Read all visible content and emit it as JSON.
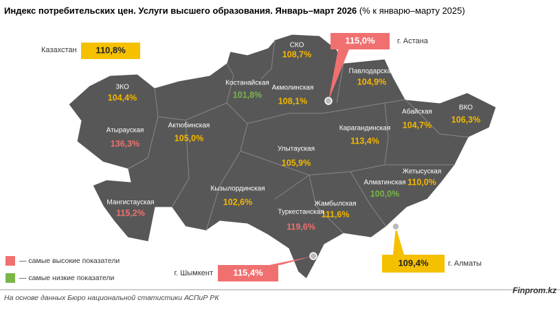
{
  "title": "Индекс потребительских цен. Услуги высшего образования. Январь–март 2026",
  "subtitle": "(% к январю–марту 2025)",
  "country": {
    "label": "Казахстан",
    "value": "110,8%",
    "color": "#f5c000"
  },
  "regions": [
    {
      "name": "СКО",
      "value": "108,7%",
      "color": "#f5b800"
    },
    {
      "name": "Костанайская",
      "value": "101,8%",
      "color": "#7ab648"
    },
    {
      "name": "Акмолинская",
      "value": "108,1%",
      "color": "#f5b800"
    },
    {
      "name": "Павлодарская",
      "value": "104,9%",
      "color": "#f5b800"
    },
    {
      "name": "ЗКО",
      "value": "104,4%",
      "color": "#f5b800"
    },
    {
      "name": "Абайская",
      "value": "104,7%",
      "color": "#f5b800"
    },
    {
      "name": "ВКО",
      "value": "106,3%",
      "color": "#f5b800"
    },
    {
      "name": "Атырауская",
      "value": "136,3%",
      "color": "#f07070"
    },
    {
      "name": "Актюбинская",
      "value": "105,0%",
      "color": "#f5b800"
    },
    {
      "name": "Карагандинская",
      "value": "113,4%",
      "color": "#f5b800"
    },
    {
      "name": "Улытауская",
      "value": "105,9%",
      "color": "#f5b800"
    },
    {
      "name": "Жетысуская",
      "value": "110,0%",
      "color": "#f5b800"
    },
    {
      "name": "Алматинская",
      "value": "100,0%",
      "color": "#7ab648"
    },
    {
      "name": "Кызылординская",
      "value": "102,6%",
      "color": "#f5b800"
    },
    {
      "name": "Мангистауская",
      "value": "115,2%",
      "color": "#f07070"
    },
    {
      "name": "Жамбылская",
      "value": "111,6%",
      "color": "#f5b800"
    },
    {
      "name": "Туркестанская",
      "value": "119,6%",
      "color": "#f07070"
    }
  ],
  "cities": [
    {
      "name": "г. Астана",
      "value": "115,0%",
      "color": "#f07070"
    },
    {
      "name": "г. Шымкент",
      "value": "115,4%",
      "color": "#f07070"
    },
    {
      "name": "г. Алматы",
      "value": "109,4%",
      "color": "#f5c000"
    }
  ],
  "legend": [
    {
      "label": "— самые высокие показатели",
      "color": "#f07070"
    },
    {
      "label": "— самые низкие показатели",
      "color": "#7ab648"
    }
  ],
  "source": "На основе данных Бюро национальной статистики АСПиР РК",
  "brand": "Finprom.kz"
}
